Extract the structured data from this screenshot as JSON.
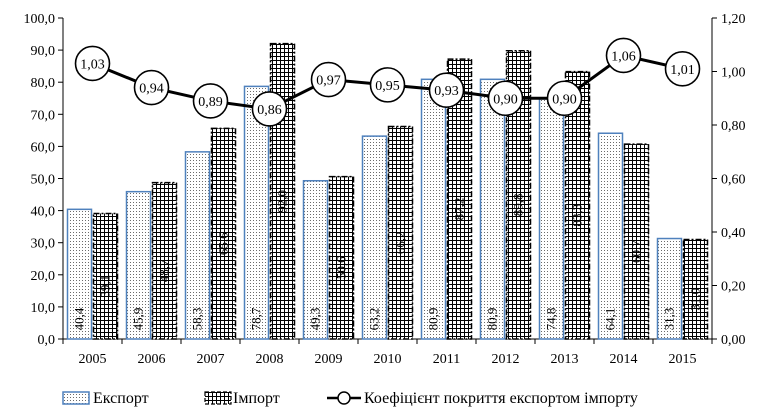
{
  "chart_data": {
    "type": "bar",
    "categories": [
      "2005",
      "2006",
      "2007",
      "2008",
      "2009",
      "2010",
      "2011",
      "2012",
      "2013",
      "2014",
      "2015"
    ],
    "series": [
      {
        "name": "Експорт",
        "kind": "bar",
        "pattern": "dots",
        "values": [
          40.4,
          45.9,
          58.3,
          78.7,
          49.3,
          63.2,
          80.9,
          80.9,
          74.8,
          64.1,
          31.3
        ],
        "labels": [
          "40,4",
          "45,9",
          "58,3",
          "78,7",
          "49,3",
          "63,2",
          "80,9",
          "80,9",
          "74,8",
          "64,1",
          "31,3"
        ]
      },
      {
        "name": "Імпорт",
        "kind": "bar",
        "pattern": "grid",
        "values": [
          39.1,
          48.7,
          65.6,
          92.0,
          50.6,
          66.2,
          87.2,
          89.8,
          83.3,
          60.7,
          31.0
        ],
        "labels": [
          "39,1",
          "48,7",
          "65,6",
          "92,0",
          "50,6",
          "66,2",
          "87,2",
          "89,8",
          "83,3",
          "60,7",
          "31,0"
        ]
      },
      {
        "name": "Коефіцієнт покриття експортом імпорту",
        "kind": "line",
        "axis": "right",
        "values": [
          1.03,
          0.94,
          0.89,
          0.86,
          0.97,
          0.95,
          0.93,
          0.9,
          0.9,
          1.06,
          1.01
        ],
        "labels": [
          "1,03",
          "0,94",
          "0,89",
          "0,86",
          "0,97",
          "0,95",
          "0,93",
          "0,90",
          "0,90",
          "1,06",
          "1,01"
        ]
      }
    ],
    "ylim": [
      0,
      100
    ],
    "y2lim": [
      0,
      1.2
    ],
    "yticks": [
      "0,0",
      "10,0",
      "20,0",
      "30,0",
      "40,0",
      "50,0",
      "60,0",
      "70,0",
      "80,0",
      "90,0",
      "100,0"
    ],
    "y2ticks": [
      "0,00",
      "0,20",
      "0,40",
      "0,60",
      "0,80",
      "1,00",
      "1,20"
    ],
    "grid": false,
    "legend_position": "bottom",
    "colors": {
      "export_border": "#4f81bd",
      "import_border": "#000000",
      "line": "#000000"
    }
  }
}
